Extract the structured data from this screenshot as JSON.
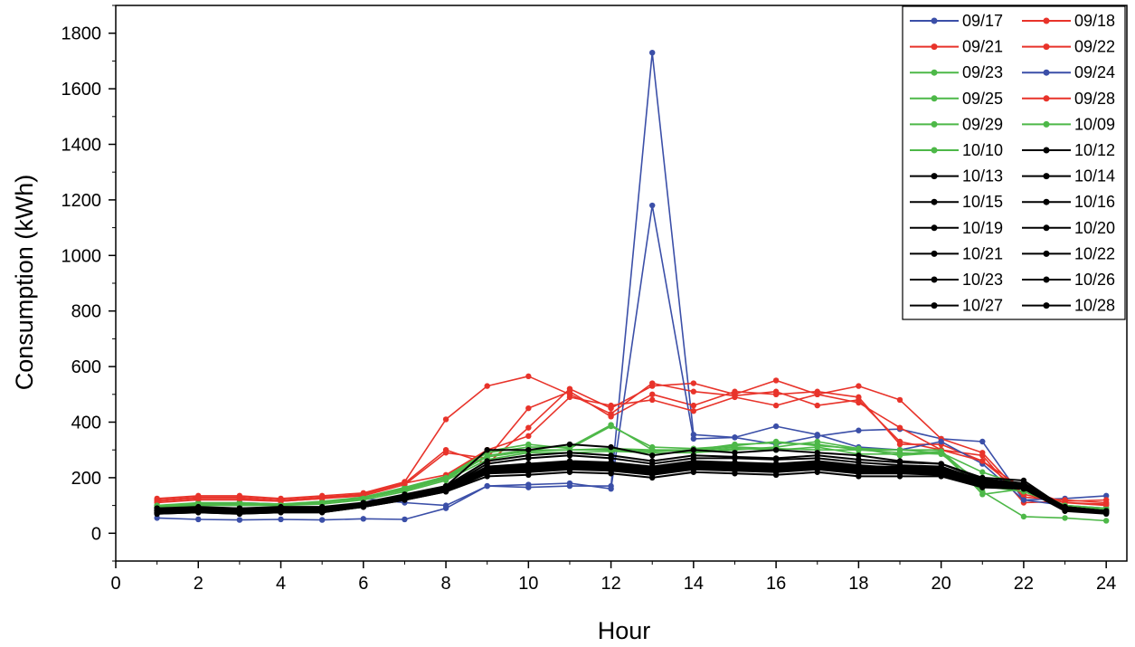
{
  "chart_data": {
    "type": "line",
    "title": "",
    "xlabel": "Hour",
    "ylabel": "Consumption (kWh)",
    "xlim": [
      0,
      24.5
    ],
    "ylim": [
      -100,
      1900
    ],
    "xticks": [
      0,
      2,
      4,
      6,
      8,
      10,
      12,
      14,
      16,
      18,
      20,
      22,
      24
    ],
    "yticks": [
      0,
      200,
      400,
      600,
      800,
      1000,
      1200,
      1400,
      1600,
      1800
    ],
    "grid": false,
    "legend_position": "top-right",
    "x": [
      1,
      2,
      3,
      4,
      5,
      6,
      7,
      8,
      9,
      10,
      11,
      12,
      13,
      14,
      15,
      16,
      17,
      18,
      19,
      20,
      21,
      22,
      23,
      24
    ],
    "colors": {
      "blue": "#3b4fa8",
      "red": "#e8332a",
      "green": "#4db848",
      "black": "#000000"
    },
    "series": [
      {
        "name": "09/17",
        "color": "#3b4fa8",
        "values": [
          55,
          50,
          48,
          50,
          48,
          52,
          50,
          90,
          170,
          165,
          170,
          170,
          1730,
          355,
          345,
          320,
          350,
          370,
          375,
          340,
          330,
          120,
          125,
          135
        ]
      },
      {
        "name": "09/18",
        "color": "#e8332a",
        "values": [
          120,
          130,
          130,
          120,
          130,
          140,
          180,
          300,
          250,
          380,
          520,
          450,
          530,
          540,
          500,
          550,
          500,
          530,
          480,
          340,
          290,
          130,
          120,
          110
        ]
      },
      {
        "name": "09/21",
        "color": "#e8332a",
        "values": [
          125,
          135,
          135,
          125,
          135,
          145,
          185,
          410,
          530,
          565,
          500,
          430,
          540,
          510,
          495,
          510,
          460,
          480,
          330,
          300,
          280,
          110,
          115,
          120
        ]
      },
      {
        "name": "09/22",
        "color": "#e8332a",
        "values": [
          110,
          120,
          120,
          115,
          125,
          135,
          175,
          290,
          270,
          450,
          510,
          420,
          500,
          460,
          510,
          500,
          510,
          490,
          320,
          320,
          260,
          160,
          110,
          100
        ]
      },
      {
        "name": "09/23",
        "color": "#4db848",
        "values": [
          95,
          105,
          105,
          100,
          110,
          130,
          160,
          200,
          290,
          310,
          310,
          390,
          300,
          300,
          320,
          325,
          320,
          300,
          300,
          290,
          150,
          60,
          55,
          45
        ]
      },
      {
        "name": "09/24",
        "color": "#3b4fa8",
        "values": [
          100,
          105,
          110,
          105,
          110,
          125,
          110,
          100,
          170,
          175,
          180,
          160,
          1180,
          340,
          345,
          385,
          355,
          310,
          300,
          330,
          250,
          120,
          100,
          90
        ]
      },
      {
        "name": "09/25",
        "color": "#4db848",
        "values": [
          100,
          110,
          110,
          105,
          115,
          130,
          165,
          205,
          295,
          320,
          305,
          385,
          310,
          305,
          315,
          330,
          315,
          305,
          300,
          300,
          140,
          160,
          100,
          90
        ]
      },
      {
        "name": "09/28",
        "color": "#e8332a",
        "values": [
          115,
          125,
          125,
          115,
          125,
          140,
          180,
          210,
          300,
          350,
          490,
          460,
          480,
          440,
          490,
          460,
          500,
          470,
          380,
          300,
          260,
          140,
          110,
          105
        ]
      },
      {
        "name": "09/29",
        "color": "#4db848",
        "values": [
          95,
          105,
          105,
          100,
          110,
          125,
          160,
          200,
          280,
          300,
          300,
          305,
          300,
          295,
          305,
          300,
          310,
          285,
          285,
          295,
          170,
          150,
          95,
          80
        ]
      },
      {
        "name": "10/09",
        "color": "#4db848",
        "values": [
          100,
          105,
          105,
          100,
          110,
          125,
          155,
          195,
          275,
          295,
          300,
          300,
          295,
          300,
          310,
          305,
          300,
          300,
          290,
          285,
          180,
          160,
          95,
          85
        ]
      },
      {
        "name": "10/10",
        "color": "#4db848",
        "values": [
          95,
          100,
          100,
          100,
          105,
          120,
          150,
          190,
          265,
          290,
          290,
          295,
          290,
          290,
          300,
          310,
          330,
          305,
          280,
          290,
          220,
          170,
          100,
          85
        ]
      },
      {
        "name": "10/12",
        "color": "#000000",
        "values": [
          90,
          95,
          90,
          95,
          95,
          110,
          140,
          170,
          300,
          300,
          320,
          310,
          280,
          300,
          290,
          300,
          290,
          280,
          260,
          250,
          200,
          190,
          90,
          80
        ]
      },
      {
        "name": "10/13",
        "color": "#000000",
        "values": [
          80,
          85,
          80,
          85,
          85,
          105,
          135,
          165,
          250,
          270,
          280,
          270,
          250,
          270,
          270,
          265,
          270,
          255,
          245,
          240,
          190,
          180,
          95,
          80
        ]
      },
      {
        "name": "10/14",
        "color": "#000000",
        "values": [
          75,
          80,
          75,
          80,
          80,
          100,
          130,
          160,
          240,
          250,
          260,
          255,
          240,
          260,
          255,
          250,
          260,
          245,
          235,
          230,
          185,
          175,
          90,
          75
        ]
      },
      {
        "name": "10/15",
        "color": "#000000",
        "values": [
          85,
          90,
          85,
          90,
          90,
          105,
          135,
          170,
          260,
          280,
          290,
          280,
          260,
          280,
          275,
          270,
          280,
          265,
          255,
          250,
          195,
          180,
          95,
          80
        ]
      },
      {
        "name": "10/16",
        "color": "#000000",
        "values": [
          70,
          75,
          70,
          75,
          75,
          95,
          125,
          150,
          220,
          230,
          240,
          235,
          220,
          240,
          235,
          230,
          240,
          225,
          225,
          220,
          175,
          170,
          85,
          75
        ]
      },
      {
        "name": "10/19",
        "color": "#000000",
        "values": [
          80,
          85,
          80,
          85,
          85,
          100,
          130,
          165,
          235,
          245,
          250,
          245,
          230,
          250,
          245,
          240,
          250,
          235,
          235,
          230,
          180,
          175,
          90,
          80
        ]
      },
      {
        "name": "10/20",
        "color": "#000000",
        "values": [
          75,
          80,
          75,
          80,
          80,
          95,
          125,
          155,
          220,
          225,
          235,
          230,
          215,
          235,
          230,
          225,
          235,
          220,
          220,
          215,
          175,
          165,
          85,
          75
        ]
      },
      {
        "name": "10/21",
        "color": "#000000",
        "values": [
          85,
          85,
          85,
          85,
          85,
          100,
          130,
          160,
          230,
          235,
          245,
          240,
          225,
          245,
          240,
          235,
          245,
          230,
          230,
          225,
          180,
          170,
          90,
          80
        ]
      },
      {
        "name": "10/22",
        "color": "#000000",
        "values": [
          80,
          80,
          80,
          80,
          80,
          95,
          125,
          155,
          225,
          230,
          240,
          235,
          220,
          240,
          235,
          230,
          240,
          225,
          225,
          220,
          175,
          170,
          85,
          75
        ]
      },
      {
        "name": "10/23",
        "color": "#000000",
        "values": [
          75,
          80,
          75,
          80,
          80,
          95,
          120,
          150,
          215,
          220,
          230,
          225,
          210,
          230,
          225,
          220,
          230,
          215,
          215,
          210,
          170,
          165,
          85,
          75
        ]
      },
      {
        "name": "10/26",
        "color": "#000000",
        "values": [
          90,
          90,
          90,
          90,
          90,
          105,
          135,
          165,
          240,
          245,
          255,
          250,
          235,
          255,
          250,
          245,
          255,
          240,
          240,
          235,
          185,
          175,
          95,
          80
        ]
      },
      {
        "name": "10/27",
        "color": "#000000",
        "values": [
          70,
          75,
          70,
          75,
          75,
          95,
          120,
          150,
          205,
          210,
          220,
          215,
          200,
          220,
          215,
          210,
          220,
          205,
          205,
          205,
          165,
          160,
          80,
          70
        ]
      },
      {
        "name": "10/28",
        "color": "#000000",
        "values": [
          80,
          85,
          80,
          85,
          85,
          100,
          130,
          160,
          230,
          240,
          250,
          245,
          230,
          250,
          245,
          240,
          250,
          235,
          230,
          230,
          180,
          170,
          90,
          80
        ]
      }
    ]
  }
}
